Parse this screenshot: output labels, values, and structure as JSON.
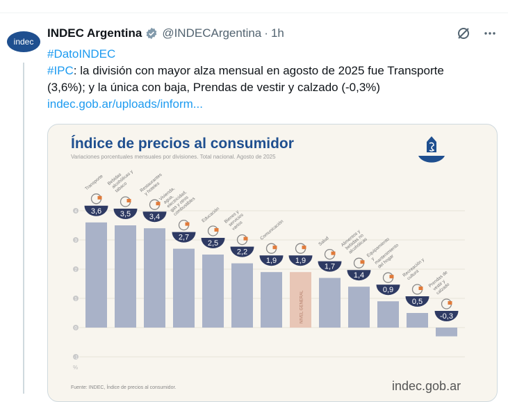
{
  "tweet": {
    "avatar_text": "indec",
    "name": "INDEC Argentina",
    "handle": "@INDECArgentina",
    "separator": "·",
    "time": "1h",
    "hashtag": "#DatoINDEC",
    "ipc_tag": "#IPC",
    "body_line1": ": la división con mayor alza mensual en agosto de 2025 fue Transporte",
    "body_line2": "(3,6%); y la única con baja, Prendas de vestir y calzado (-0,3%)",
    "link": "indec.gob.ar/uploads/inform...",
    "icons": [
      "grok-icon",
      "more-icon"
    ]
  },
  "chart_data": {
    "type": "bar",
    "title": "Índice de precios al consumidor",
    "subtitle": "Variaciones porcentuales mensuales por divisiones. Total nacional. Agosto de 2025",
    "categories": [
      "Transporte",
      "Bebidas alcohólicas y tabaco",
      "Restaurantes y hoteles",
      "Vivienda, agua, electricidad, gas y otros combustibles",
      "Educación",
      "Bienes y servicios varios",
      "Comunicación",
      "NIVEL GENERAL",
      "Salud",
      "Alimentos y bebidas no alcohólicas",
      "Equipamiento y mantenimiento del hogar",
      "Recreación y cultura",
      "Prendas de vestir y calzado"
    ],
    "values": [
      3.6,
      3.5,
      3.4,
      2.7,
      2.5,
      2.2,
      1.9,
      1.9,
      1.7,
      1.4,
      0.9,
      0.5,
      -0.3
    ],
    "value_labels": [
      "3,6",
      "3,5",
      "3,4",
      "2,7",
      "2,5",
      "2,2",
      "1,9",
      "1,9",
      "1,7",
      "1,4",
      "0,9",
      "0,5",
      "-0,3"
    ],
    "yticks": [
      "4",
      "3",
      "2",
      "1",
      "0",
      "-1"
    ],
    "ylim": [
      -1,
      4
    ],
    "yunit": "%",
    "grid": true,
    "highlight_category": "NIVEL GENERAL",
    "colors": {
      "bar": "#a9b2c8",
      "highlight": "#e8c6b6",
      "label_bowl": "#2e3a63",
      "title": "#1f4f8f"
    },
    "source": "Fuente: INDEC, Índice de precios al consumidor.",
    "brand": "indec.gob.ar"
  }
}
